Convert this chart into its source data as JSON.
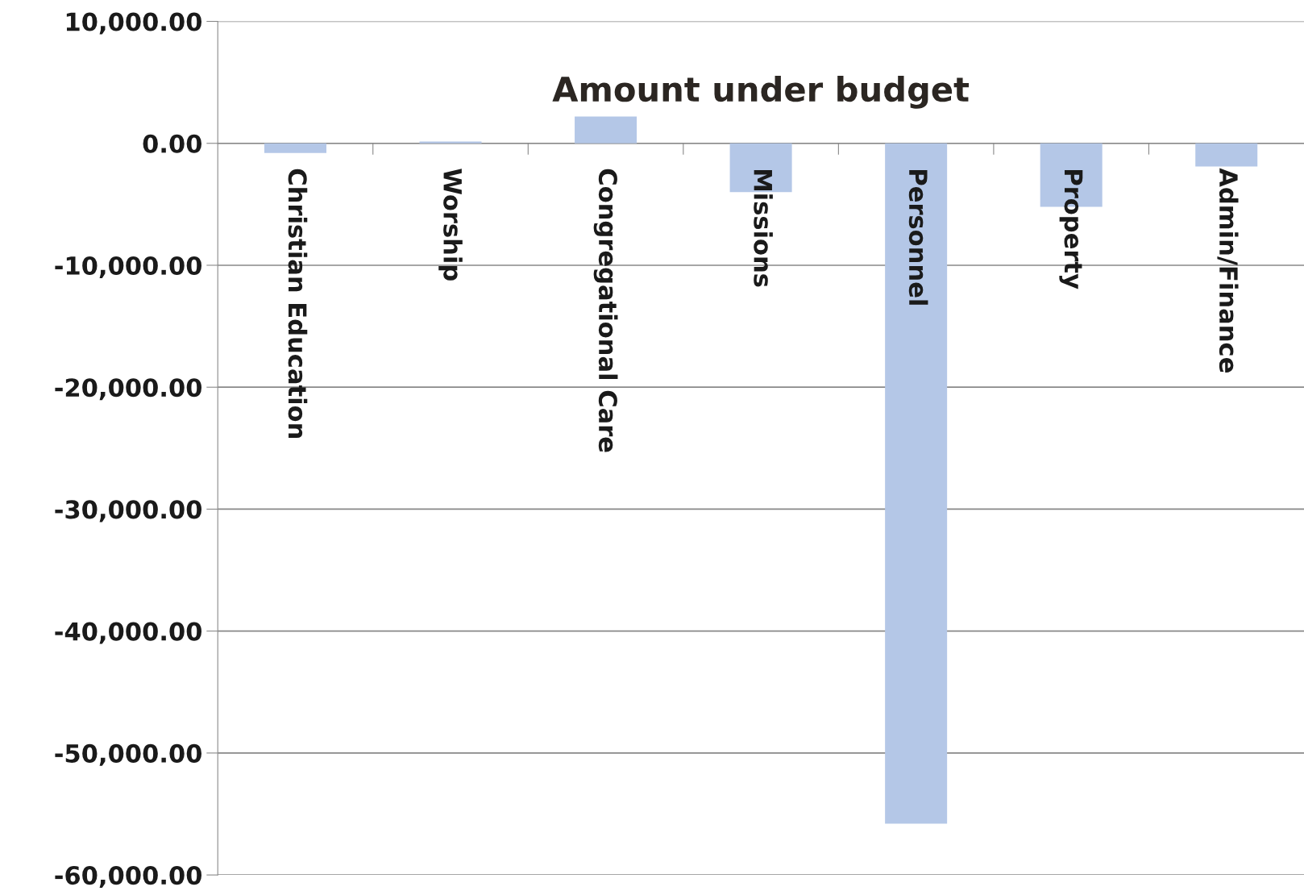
{
  "chart_data": {
    "type": "bar",
    "title": "Amount under budget",
    "categories": [
      "Christian Education",
      "Worship",
      "Congregational Care",
      "Missions",
      "Personnel",
      "Property",
      "Admin/Finance"
    ],
    "values": [
      -800,
      150,
      2200,
      -4000,
      -55800,
      -5200,
      -1900
    ],
    "color": "#b4c7e7",
    "ylim": [
      -60000,
      10000
    ],
    "yticks": [
      {
        "value": -60000,
        "label": "-60,000.00"
      },
      {
        "value": -50000,
        "label": "-50,000.00"
      },
      {
        "value": -40000,
        "label": "-40,000.00"
      },
      {
        "value": -30000,
        "label": "-30,000.00"
      },
      {
        "value": -20000,
        "label": "-20,000.00"
      },
      {
        "value": -10000,
        "label": "-10,000.00"
      },
      {
        "value": 0,
        "label": "0.00"
      },
      {
        "value": 10000,
        "label": "10,000.00"
      }
    ],
    "grid": "y",
    "legend": false
  }
}
